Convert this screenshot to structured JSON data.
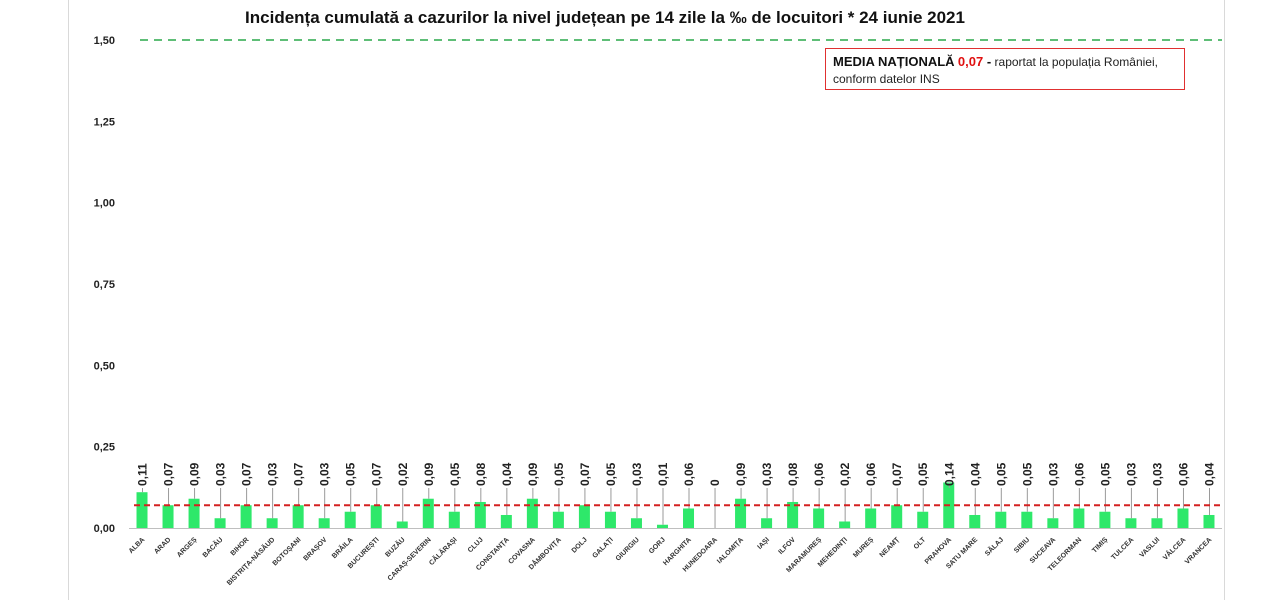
{
  "colors": {
    "bar": "#2ee86a",
    "average_line": "#d42020",
    "limit_line": "#2aa84a"
  },
  "chart_data": {
    "type": "bar",
    "title": "Incidența cumulată a cazurilor la nivel județean pe 14 zile la ‰ de locuitori *  24 iunie 2021",
    "xlabel": "",
    "ylabel": "",
    "ylim": [
      0,
      1.5
    ],
    "yticks": [
      "0,00",
      "0,25",
      "0,50",
      "0,75",
      "1,00",
      "1,25",
      "1,50"
    ],
    "grid": false,
    "reference_lines": [
      {
        "value": 1.5,
        "style": "dashed",
        "color": "green"
      },
      {
        "value": 0.07,
        "style": "dashed",
        "color": "red"
      }
    ],
    "categories": [
      "ALBA",
      "ARAD",
      "ARGEȘ",
      "BACĂU",
      "BIHOR",
      "BISTRIȚA-NĂSĂUD",
      "BOTOȘANI",
      "BRAȘOV",
      "BRĂILA",
      "BUCUREȘTI",
      "BUZĂU",
      "CARAȘ-SEVERIN",
      "CĂLĂRAȘI",
      "CLUJ",
      "CONSTANȚA",
      "COVASNA",
      "DÂMBOVIȚA",
      "DOLJ",
      "GALAȚI",
      "GIURGIU",
      "GORJ",
      "HARGHITA",
      "HUNEDOARA",
      "IALOMIȚA",
      "IAȘI",
      "ILFOV",
      "MARAMUREȘ",
      "MEHEDINȚI",
      "MUREȘ",
      "NEAMȚ",
      "OLT",
      "PRAHOVA",
      "SATU MARE",
      "SĂLAJ",
      "SIBIU",
      "SUCEAVA",
      "TELEORMAN",
      "TIMIȘ",
      "TULCEA",
      "VASLUI",
      "VÂLCEA",
      "VRANCEA"
    ],
    "values": [
      0.11,
      0.07,
      0.09,
      0.03,
      0.07,
      0.03,
      0.07,
      0.03,
      0.05,
      0.07,
      0.02,
      0.09,
      0.05,
      0.08,
      0.04,
      0.09,
      0.05,
      0.07,
      0.05,
      0.03,
      0.01,
      0.06,
      0,
      0.09,
      0.03,
      0.08,
      0.06,
      0.02,
      0.06,
      0.07,
      0.05,
      0.14,
      0.04,
      0.05,
      0.05,
      0.03,
      0.06,
      0.05,
      0.03,
      0.03,
      0.06,
      0.04
    ],
    "data_labels": [
      "0,11",
      "0,07",
      "0,09",
      "0,03",
      "0,07",
      "0,03",
      "0,07",
      "0,03",
      "0,05",
      "0,07",
      "0,02",
      "0,09",
      "0,05",
      "0,08",
      "0,04",
      "0,09",
      "0,05",
      "0,07",
      "0,05",
      "0,03",
      "0,01",
      "0,06",
      "0",
      "0,09",
      "0,03",
      "0,08",
      "0,06",
      "0,02",
      "0,06",
      "0,07",
      "0,05",
      "0,14",
      "0,04",
      "0,05",
      "0,05",
      "0,03",
      "0,06",
      "0,05",
      "0,03",
      "0,03",
      "0,06",
      "0,04"
    ],
    "annotation": {
      "label": "MEDIA NAȚIONALĂ",
      "value": "0,07",
      "separator": " -",
      "text_line1": " raportat la populația României,",
      "text_line2": "conform datelor INS"
    }
  }
}
